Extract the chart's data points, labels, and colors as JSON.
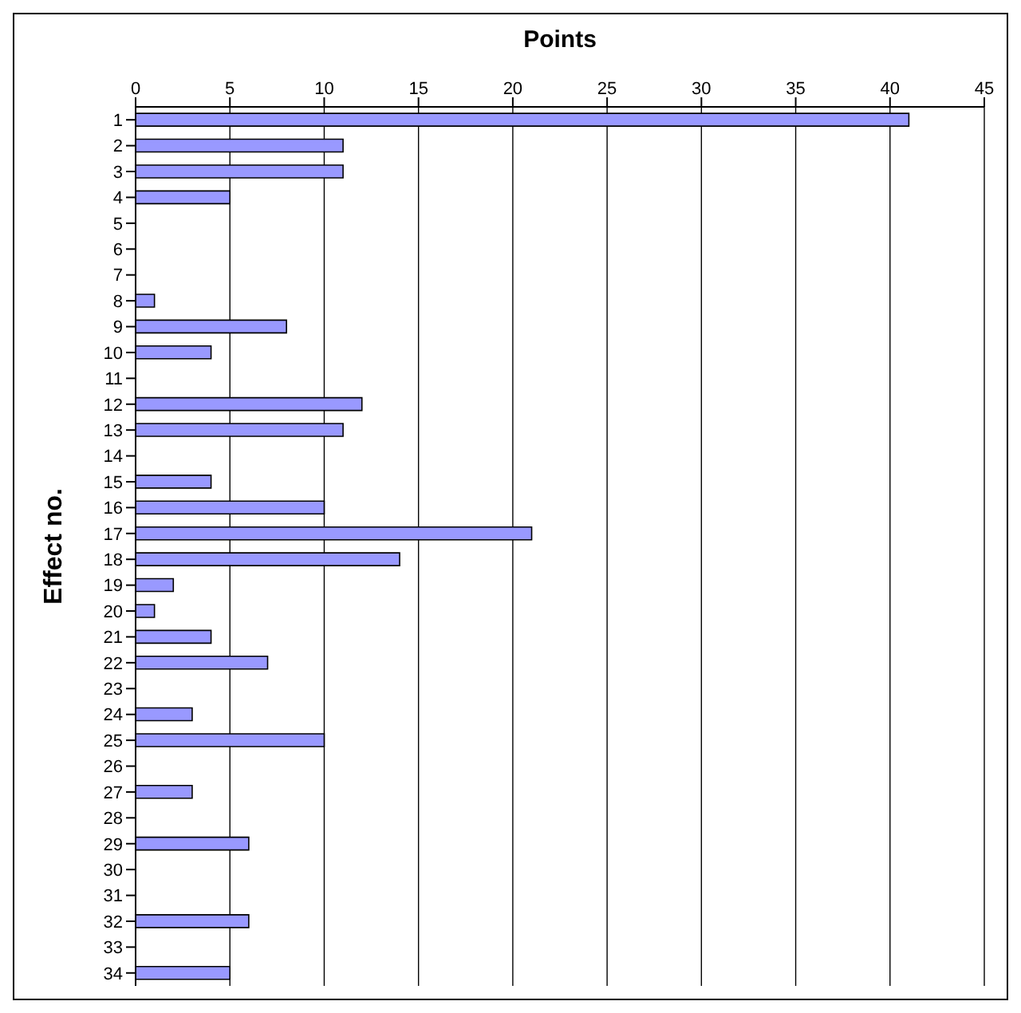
{
  "chart_data": {
    "type": "bar",
    "orientation": "horizontal",
    "xlabel": "Points",
    "ylabel": "Effect no.",
    "categories": [
      "1",
      "2",
      "3",
      "4",
      "5",
      "6",
      "7",
      "8",
      "9",
      "10",
      "11",
      "12",
      "13",
      "14",
      "15",
      "16",
      "17",
      "18",
      "19",
      "20",
      "21",
      "22",
      "23",
      "24",
      "25",
      "26",
      "27",
      "28",
      "29",
      "30",
      "31",
      "32",
      "33",
      "34"
    ],
    "values": [
      41,
      11,
      11,
      5,
      0,
      0,
      0,
      1,
      8,
      4,
      0,
      12,
      11,
      0,
      4,
      10,
      21,
      14,
      2,
      1,
      4,
      7,
      0,
      3,
      10,
      0,
      3,
      0,
      6,
      0,
      0,
      6,
      0,
      5
    ],
    "color": "#9999ff",
    "xlim": [
      0,
      45
    ],
    "xticks": [
      0,
      5,
      10,
      15,
      20,
      25,
      30,
      35,
      40,
      45
    ],
    "grid": "x"
  }
}
